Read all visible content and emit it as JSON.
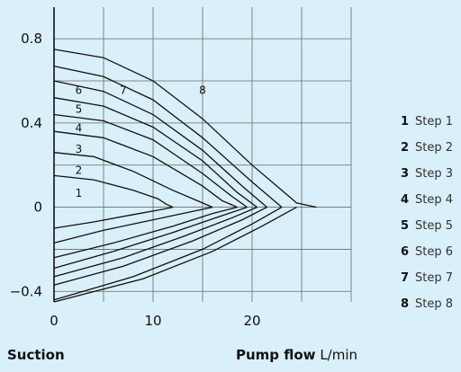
{
  "chart_data": {
    "type": "line",
    "xlabel_bold": "Pump flow",
    "xlabel_unit": "L/min",
    "ylabel": "Suction",
    "xlim": [
      0,
      30
    ],
    "ylim": [
      -0.45,
      0.95
    ],
    "x_ticks": [
      0,
      10,
      20
    ],
    "y_ticks": [
      0.8,
      0.4,
      0,
      -0.4
    ],
    "y_tick_labels": [
      "0.8",
      "0.4",
      "0",
      "−0.4"
    ],
    "grid": true,
    "legend_position": "right",
    "series": [
      {
        "name": "Step 1",
        "number": "1",
        "pressure": [
          [
            0,
            0.15
          ],
          [
            4,
            0.13
          ],
          [
            8,
            0.08
          ],
          [
            10.5,
            0.04
          ],
          [
            11.3,
            0.015
          ],
          [
            12,
            0
          ]
        ],
        "suction": [
          [
            12,
            0
          ],
          [
            11,
            -0.01
          ],
          [
            8,
            -0.035
          ],
          [
            4,
            -0.07
          ],
          [
            0,
            -0.1
          ]
        ]
      },
      {
        "name": "Step 2",
        "number": "2",
        "pressure": [
          [
            0,
            0.26
          ],
          [
            4,
            0.24
          ],
          [
            8,
            0.17
          ],
          [
            12,
            0.08
          ],
          [
            14.5,
            0.03
          ],
          [
            16,
            0
          ]
        ],
        "suction": [
          [
            16,
            0
          ],
          [
            14,
            -0.02
          ],
          [
            10,
            -0.06
          ],
          [
            5,
            -0.11
          ],
          [
            0,
            -0.17
          ]
        ]
      },
      {
        "name": "Step 3",
        "number": "3",
        "pressure": [
          [
            0,
            0.36
          ],
          [
            5,
            0.33
          ],
          [
            10,
            0.24
          ],
          [
            15,
            0.1
          ],
          [
            17,
            0.03
          ],
          [
            18.5,
            0
          ]
        ],
        "suction": [
          [
            18.5,
            0
          ],
          [
            16,
            -0.03
          ],
          [
            12,
            -0.09
          ],
          [
            6,
            -0.17
          ],
          [
            0,
            -0.24
          ]
        ]
      },
      {
        "name": "Step 4",
        "number": "4",
        "pressure": [
          [
            0,
            0.44
          ],
          [
            5,
            0.41
          ],
          [
            10,
            0.32
          ],
          [
            15,
            0.16
          ],
          [
            18,
            0.05
          ],
          [
            19.5,
            0
          ]
        ],
        "suction": [
          [
            19.5,
            0
          ],
          [
            17,
            -0.04
          ],
          [
            12,
            -0.12
          ],
          [
            6,
            -0.21
          ],
          [
            0,
            -0.29
          ]
        ]
      },
      {
        "name": "Step 5",
        "number": "5",
        "pressure": [
          [
            0,
            0.52
          ],
          [
            5,
            0.48
          ],
          [
            10,
            0.38
          ],
          [
            15,
            0.22
          ],
          [
            18.5,
            0.07
          ],
          [
            20.5,
            0
          ]
        ],
        "suction": [
          [
            20.5,
            0
          ],
          [
            18,
            -0.05
          ],
          [
            13,
            -0.14
          ],
          [
            7,
            -0.24
          ],
          [
            0,
            -0.33
          ]
        ]
      },
      {
        "name": "Step 6",
        "number": "6",
        "pressure": [
          [
            0,
            0.6
          ],
          [
            5,
            0.55
          ],
          [
            10,
            0.44
          ],
          [
            15,
            0.27
          ],
          [
            19,
            0.1
          ],
          [
            21.5,
            0
          ]
        ],
        "suction": [
          [
            21.5,
            0
          ],
          [
            19,
            -0.06
          ],
          [
            14,
            -0.16
          ],
          [
            7,
            -0.28
          ],
          [
            0,
            -0.37
          ]
        ]
      },
      {
        "name": "Step 7",
        "number": "7",
        "pressure": [
          [
            0,
            0.67
          ],
          [
            5,
            0.62
          ],
          [
            10,
            0.51
          ],
          [
            15,
            0.33
          ],
          [
            20,
            0.12
          ],
          [
            23,
            0
          ]
        ],
        "suction": [
          [
            23,
            0
          ],
          [
            20,
            -0.08
          ],
          [
            15,
            -0.2
          ],
          [
            8,
            -0.33
          ],
          [
            0,
            -0.44
          ]
        ]
      },
      {
        "name": "Step 8",
        "number": "8",
        "pressure": [
          [
            0,
            0.75
          ],
          [
            5,
            0.71
          ],
          [
            10,
            0.6
          ],
          [
            15,
            0.42
          ],
          [
            20,
            0.2
          ],
          [
            24.5,
            0.02
          ],
          [
            26.5,
            0
          ]
        ],
        "suction": [
          [
            24.5,
            0
          ],
          [
            21,
            -0.09
          ],
          [
            16,
            -0.21
          ],
          [
            9,
            -0.34
          ],
          [
            0,
            -0.45
          ]
        ]
      }
    ]
  }
}
